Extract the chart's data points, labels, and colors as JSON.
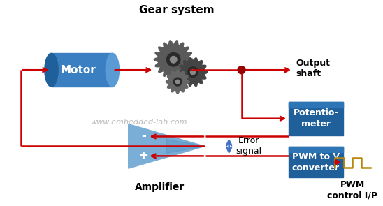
{
  "title": "Gear system",
  "watermark": "www.embedded-lab.com",
  "motor_label": "Motor",
  "motor_color": "#3A7FC1",
  "motor_color_dark": "#1F5F9A",
  "motor_color_light": "#5B9BD5",
  "box_color": "#1F5F9A",
  "box_color_top": "#2E75B6",
  "amp_color": "#7BAED6",
  "amp_color_dark": "#4A8CC4",
  "arrow_color": "#CC0000",
  "dot_color": "#990000",
  "pwm_color": "#B8860B",
  "error_arrow_color": "#4472C4",
  "output_shaft_label": "Output\nshaft",
  "potentiometer_label": "Potentio-\nmeter",
  "pwm_converter_label": "PWM to V\nconverter",
  "amplifier_label": "Amplifier",
  "error_signal_label": "Error\nsignal",
  "pwm_control_label": "PWM\ncontrol I/P",
  "bg_color": "#FFFFFF",
  "figsize": [
    5.48,
    2.95
  ],
  "dpi": 100
}
